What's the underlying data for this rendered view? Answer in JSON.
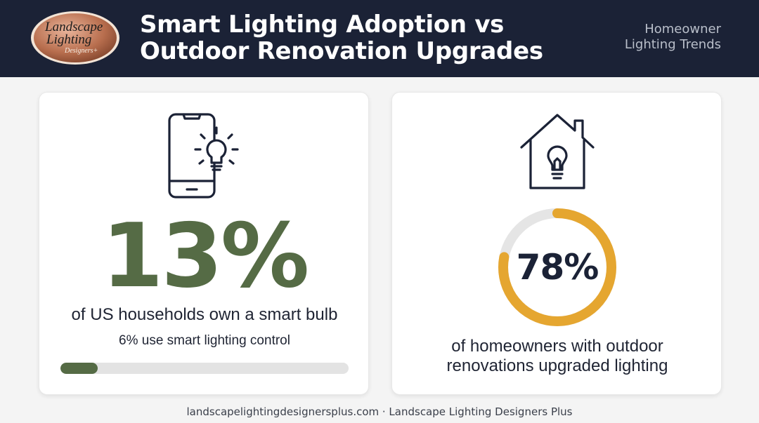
{
  "header": {
    "logo_text": [
      "Landscape",
      "Lighting",
      "Designers+"
    ],
    "title_line1": "Smart Lighting Adoption vs",
    "title_line2": "Outdoor Renovation Upgrades",
    "tagline_line1": "Homeowner",
    "tagline_line2": "Lighting Trends"
  },
  "left_card": {
    "icon": "smartphone-lightbulb-icon",
    "stat": "13%",
    "description": "of US households own a smart bulb",
    "sub_stat": "6% use smart lighting control",
    "progress_percent": 13,
    "accent_color": "#556b45"
  },
  "right_card": {
    "icon": "house-lightbulb-icon",
    "stat": "78%",
    "donut_percent": 78,
    "description_line1": "of homeowners with outdoor",
    "description_line2": "renovations upgraded lighting",
    "accent_color": "#e5a630"
  },
  "footer": {
    "text": "landscapelightingdesignersplus.com · Landscape Lighting Designers Plus"
  }
}
